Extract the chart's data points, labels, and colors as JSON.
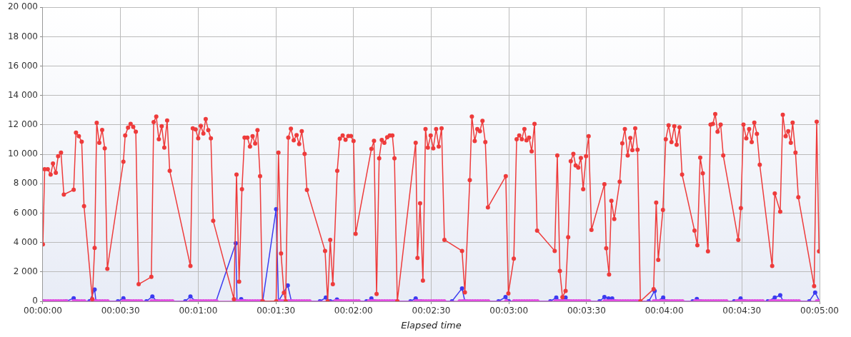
{
  "chart_data": {
    "type": "line",
    "xlabel": "Elapsed time",
    "xlim": [
      0,
      300
    ],
    "ylim": [
      0,
      20000
    ],
    "xticks": [
      {
        "value": 0,
        "label": "00:00:00"
      },
      {
        "value": 30,
        "label": "00:00:30"
      },
      {
        "value": 60,
        "label": "00:01:00"
      },
      {
        "value": 90,
        "label": "00:01:30"
      },
      {
        "value": 120,
        "label": "00:02:00"
      },
      {
        "value": 150,
        "label": "00:02:30"
      },
      {
        "value": 180,
        "label": "00:03:00"
      },
      {
        "value": 210,
        "label": "00:03:30"
      },
      {
        "value": 240,
        "label": "00:04:00"
      },
      {
        "value": 270,
        "label": "00:04:30"
      },
      {
        "value": 300,
        "label": "00:05:00"
      }
    ],
    "yticks": [
      0,
      {
        "value": 2000,
        "label": "2 000"
      },
      {
        "value": 4000,
        "label": "4 000"
      },
      {
        "value": 6000,
        "label": "6 000"
      },
      {
        "value": 8000,
        "label": "8 000"
      },
      {
        "value": 10000,
        "label": "10 000"
      },
      {
        "value": 12000,
        "label": "12 000"
      },
      {
        "value": 14000,
        "label": "14 000"
      },
      {
        "value": 16000,
        "label": "16 000"
      },
      {
        "value": 18000,
        "label": "18 000"
      },
      {
        "value": 20000,
        "label": "20 000"
      }
    ],
    "grid": true,
    "legend": false,
    "marker": "circle",
    "line_style": "solid",
    "series": [
      {
        "color": "#ee3b3b",
        "x": [
          0,
          0.7,
          1.9,
          3,
          3.9,
          5,
          5.9,
          7,
          8.1,
          11.9,
          12.8,
          13.9,
          15,
          15.9,
          19.1,
          20,
          20.8,
          21.8,
          22.9,
          23.9,
          24.9,
          31.1,
          31.8,
          32.9,
          33.9,
          34.9,
          35.9,
          37,
          41.9,
          42.8,
          43.8,
          44.8,
          45.9,
          46.9,
          48,
          49,
          57,
          57.9,
          59,
          60,
          61,
          62,
          62.9,
          63.9,
          64.9,
          65.8,
          73.8,
          74.8,
          75.8,
          76.9,
          77.9,
          79,
          80,
          81,
          82,
          82.9,
          83.9,
          84.8,
          90.1,
          91,
          92,
          93.1,
          93.8,
          94.8,
          95.8,
          96.9,
          98,
          99,
          100,
          101.1,
          102,
          109,
          110,
          111,
          112,
          113.7,
          114.7,
          115.8,
          116.9,
          118,
          119,
          120,
          120.8,
          126.9,
          127.9,
          128.9,
          129.9,
          130.9,
          131.9,
          133,
          134,
          135,
          135.8,
          136.9,
          144,
          144.7,
          145.7,
          146.8,
          147.8,
          148.7,
          149.8,
          150.8,
          151.9,
          152.9,
          154,
          155.1,
          161.9,
          163,
          164.9,
          165.7,
          166.8,
          167.8,
          168.8,
          169.8,
          170.9,
          171.9,
          178.8,
          179.8,
          181.9,
          183,
          184,
          185,
          186,
          186.8,
          187.8,
          188.8,
          189.9,
          190.9,
          197.7,
          198.7,
          199.7,
          200.7,
          201.9,
          202.9,
          203.9,
          204.9,
          205.8,
          206.8,
          207.8,
          208.7,
          209.8,
          210.8,
          211.9,
          216.9,
          217.6,
          218.7,
          219.6,
          220.7,
          222.8,
          223.8,
          224.8,
          225.9,
          226.9,
          227.7,
          228.8,
          229.7,
          230.8,
          235.9,
          236.9,
          237.7,
          239.5,
          240.6,
          241.7,
          242.8,
          243.9,
          244.8,
          245.9,
          246.9,
          251.7,
          252.8,
          253.9,
          254.9,
          256.9,
          257.9,
          258.8,
          259.7,
          260.6,
          261.8,
          262.8,
          268.6,
          269.6,
          270.6,
          271.7,
          272.8,
          273.8,
          274.8,
          275.8,
          276.9,
          281.7,
          282.7,
          284.8,
          285.8,
          286.9,
          287.9,
          288.9,
          289.6,
          290.7,
          291.8,
          297.9,
          298.9,
          299.8
        ],
        "values": [
          3870,
          8990,
          8990,
          8620,
          9370,
          8740,
          9870,
          10120,
          7260,
          7590,
          11470,
          11230,
          10860,
          6470,
          150,
          3630,
          12140,
          10780,
          11660,
          10410,
          2210,
          9490,
          11280,
          11820,
          12070,
          11860,
          11530,
          1160,
          1660,
          12190,
          12570,
          11030,
          11910,
          10450,
          12300,
          8870,
          2400,
          11770,
          11690,
          11080,
          11940,
          11410,
          12400,
          11640,
          11080,
          5470,
          150,
          8620,
          1330,
          7630,
          11140,
          11140,
          10530,
          11230,
          10730,
          11640,
          8510,
          0,
          0,
          10120,
          3250,
          580,
          0,
          11140,
          11740,
          10950,
          11310,
          10700,
          11570,
          10030,
          7580,
          3430,
          0,
          4180,
          1160,
          8870,
          11060,
          11280,
          10990,
          11240,
          11240,
          10900,
          4590,
          10370,
          10910,
          500,
          9730,
          10980,
          10780,
          11160,
          11280,
          11280,
          9730,
          0,
          10780,
          2950,
          6670,
          1410,
          11720,
          10450,
          11280,
          10400,
          11720,
          10530,
          11770,
          4180,
          3430,
          610,
          8240,
          12570,
          10900,
          11720,
          11570,
          12270,
          10830,
          6390,
          8510,
          530,
          2900,
          11030,
          11280,
          11030,
          11720,
          10950,
          11140,
          10200,
          12070,
          4810,
          3430,
          9920,
          2070,
          280,
          710,
          4360,
          9530,
          10030,
          9240,
          9090,
          9750,
          7630,
          9870,
          11230,
          4860,
          7960,
          3610,
          1820,
          6830,
          5600,
          8130,
          10750,
          11720,
          9920,
          11110,
          10280,
          11770,
          10310,
          0,
          830,
          6720,
          2820,
          6220,
          11030,
          11970,
          10830,
          11910,
          10650,
          11840,
          8620,
          4810,
          3810,
          9780,
          8710,
          3400,
          12020,
          12070,
          12740,
          11530,
          12020,
          9920,
          4180,
          6340,
          12020,
          11080,
          11720,
          10830,
          12160,
          11390,
          9290,
          2400,
          7330,
          6100,
          12690,
          11230,
          11570,
          10780,
          12160,
          10120,
          7080,
          1030,
          12220,
          3400
        ]
      },
      {
        "color": "#e04ee0",
        "x": [
          0,
          1,
          2,
          3,
          4,
          5,
          6,
          7,
          8,
          9,
          12,
          13,
          14,
          15,
          16,
          19,
          20,
          21,
          22,
          23,
          24,
          25,
          31,
          32,
          33,
          34,
          35,
          36,
          37,
          38,
          42,
          43,
          44,
          45,
          46,
          47,
          48,
          49,
          50,
          57,
          58,
          59,
          60,
          61,
          62,
          63,
          64,
          65,
          66,
          67,
          74,
          75,
          76,
          77,
          78,
          79,
          80,
          81,
          82,
          83,
          84,
          85,
          91,
          92,
          93,
          94,
          95,
          96,
          97,
          98,
          99,
          100,
          101,
          102,
          103,
          113,
          114,
          115,
          116,
          117,
          118,
          119,
          120,
          121,
          122,
          126,
          127,
          128,
          129,
          130,
          131,
          132,
          133,
          134,
          135,
          136,
          137,
          144,
          145,
          146,
          147,
          148,
          149,
          150,
          151,
          152,
          153,
          154,
          155,
          161,
          162,
          163,
          164,
          165,
          166,
          167,
          168,
          169,
          170,
          171,
          172,
          179,
          182,
          183,
          184,
          185,
          186,
          187,
          188,
          189,
          190,
          191,
          198,
          199,
          200,
          201,
          202,
          203,
          204,
          205,
          206,
          207,
          208,
          209,
          210,
          211,
          217,
          218,
          219,
          220,
          221,
          222,
          223,
          224,
          225,
          226,
          227,
          228,
          229,
          230,
          236,
          237,
          238,
          239,
          240,
          241,
          242,
          243,
          244,
          245,
          246,
          247,
          252,
          253,
          254,
          255,
          256,
          257,
          258,
          259,
          260,
          261,
          262,
          263,
          264,
          268,
          269,
          270,
          271,
          272,
          273,
          274,
          275,
          276,
          277,
          278,
          281,
          282,
          283,
          284,
          285,
          286,
          287,
          288,
          289,
          290,
          291,
          292,
          299,
          300
        ],
        "values": [
          0,
          0,
          0,
          0,
          0,
          0,
          0,
          0,
          0,
          0,
          0,
          0,
          0,
          0,
          0,
          0,
          0,
          0,
          0,
          0,
          0,
          0,
          0,
          0,
          0,
          0,
          0,
          0,
          0,
          0,
          0,
          0,
          0,
          0,
          0,
          0,
          0,
          0,
          0,
          0,
          0,
          0,
          0,
          0,
          0,
          0,
          0,
          0,
          0,
          0,
          0,
          0,
          0,
          0,
          0,
          0,
          0,
          0,
          0,
          0,
          0,
          0,
          0,
          0,
          0,
          0,
          0,
          0,
          0,
          0,
          0,
          0,
          0,
          0,
          0,
          0,
          0,
          0,
          0,
          0,
          0,
          0,
          0,
          0,
          0,
          0,
          0,
          0,
          0,
          0,
          0,
          0,
          0,
          0,
          0,
          0,
          0,
          0,
          0,
          0,
          0,
          0,
          0,
          0,
          0,
          0,
          0,
          0,
          0,
          0,
          0,
          0,
          0,
          0,
          0,
          0,
          0,
          0,
          0,
          0,
          0,
          0,
          0,
          0,
          0,
          0,
          0,
          0,
          0,
          0,
          0,
          0,
          0,
          0,
          0,
          0,
          0,
          0,
          0,
          0,
          0,
          0,
          0,
          0,
          0,
          0,
          0,
          0,
          0,
          0,
          0,
          0,
          0,
          0,
          0,
          0,
          0,
          0,
          0,
          0,
          0,
          0,
          0,
          0,
          0,
          0,
          0,
          0,
          0,
          0,
          0,
          0,
          0,
          0,
          0,
          0,
          0,
          0,
          0,
          0,
          0,
          0,
          0,
          0,
          0,
          0,
          0,
          0,
          0,
          0,
          0,
          0,
          0,
          0,
          0,
          0,
          0,
          0,
          0,
          0,
          0,
          0,
          0,
          0,
          0,
          0,
          0,
          0,
          0,
          0
        ]
      },
      {
        "color": "#3b3bf0",
        "x": [
          0,
          9,
          11.9,
          13,
          18,
          20,
          20.5,
          29,
          31.1,
          33,
          40,
          42.3,
          44,
          55,
          57,
          59,
          66.9,
          74.5,
          75,
          76.6,
          78,
          84.9,
          90.1,
          91,
          94.6,
          96,
          107,
          109.3,
          111,
          113.6,
          115,
          125,
          126.9,
          128,
          142,
          144,
          146,
          158,
          161.9,
          163,
          176,
          178.7,
          180,
          196,
          198.3,
          200,
          201.9,
          203,
          215,
          216.9,
          218.5,
          219.9,
          221,
          234,
          236.3,
          237,
          239.6,
          241,
          251,
          252.6,
          254,
          267,
          269.5,
          271,
          280,
          282.7,
          284.8,
          286,
          296,
          298.3,
          300
        ],
        "values": [
          0,
          0,
          210,
          0,
          0,
          800,
          0,
          0,
          210,
          0,
          0,
          330,
          0,
          0,
          330,
          0,
          0,
          3950,
          0,
          150,
          0,
          0,
          6270,
          0,
          1080,
          0,
          0,
          250,
          0,
          120,
          0,
          0,
          200,
          0,
          0,
          200,
          0,
          0,
          880,
          0,
          0,
          290,
          0,
          0,
          250,
          0,
          250,
          0,
          0,
          290,
          200,
          200,
          0,
          0,
          710,
          0,
          250,
          0,
          0,
          160,
          0,
          0,
          200,
          0,
          0,
          250,
          410,
          0,
          0,
          600,
          0
        ]
      }
    ]
  }
}
